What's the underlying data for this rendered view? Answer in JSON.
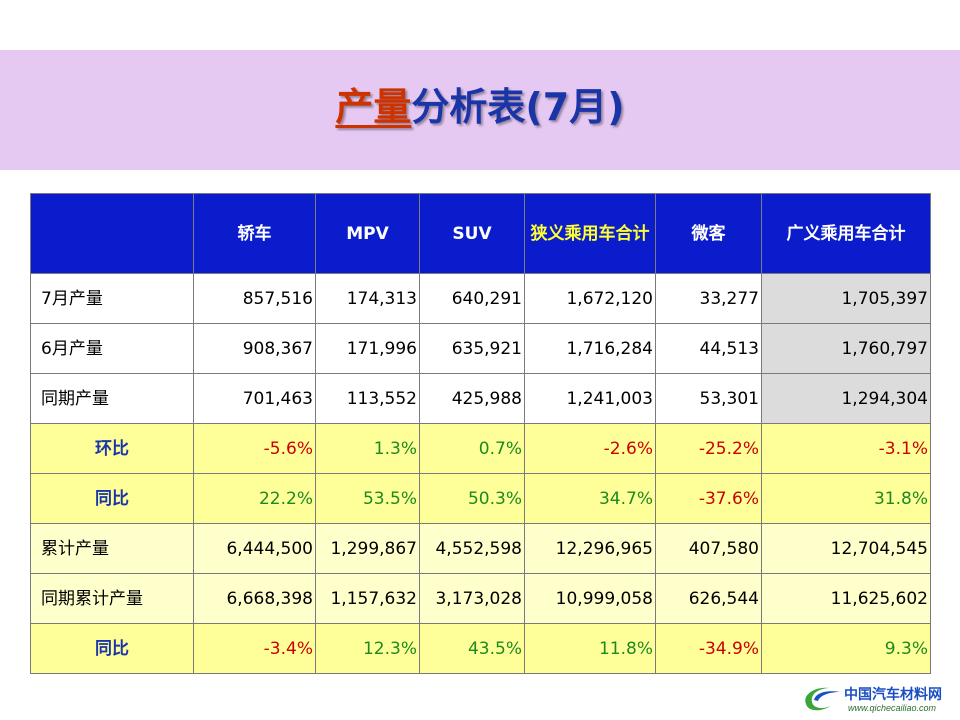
{
  "title": {
    "highlight": "产量",
    "rest": "分析表(7月)"
  },
  "table": {
    "headers": [
      "",
      "轿车",
      "MPV",
      "SUV",
      "狭义乘用车合计",
      "微客",
      "广义乘用车合计"
    ],
    "rows": [
      {
        "type": "data",
        "label": "7月产量",
        "cells": [
          {
            "v": "857,516"
          },
          {
            "v": "174,313"
          },
          {
            "v": "640,291"
          },
          {
            "v": "1,672,120"
          },
          {
            "v": "33,277"
          },
          {
            "v": "1,705,397"
          }
        ]
      },
      {
        "type": "data",
        "label": "6月产量",
        "cells": [
          {
            "v": "908,367"
          },
          {
            "v": "171,996"
          },
          {
            "v": "635,921"
          },
          {
            "v": "1,716,284"
          },
          {
            "v": "44,513"
          },
          {
            "v": "1,760,797"
          }
        ]
      },
      {
        "type": "data",
        "label": "同期产量",
        "cells": [
          {
            "v": "701,463"
          },
          {
            "v": "113,552"
          },
          {
            "v": "425,988"
          },
          {
            "v": "1,241,003"
          },
          {
            "v": "53,301"
          },
          {
            "v": "1,294,304"
          }
        ]
      },
      {
        "type": "ratio",
        "label": "环比",
        "cells": [
          {
            "v": "-5.6%",
            "s": "neg"
          },
          {
            "v": "1.3%",
            "s": "pos"
          },
          {
            "v": "0.7%",
            "s": "pos"
          },
          {
            "v": "-2.6%",
            "s": "neg"
          },
          {
            "v": "-25.2%",
            "s": "neg"
          },
          {
            "v": "-3.1%",
            "s": "neg"
          }
        ]
      },
      {
        "type": "ratio",
        "label": "同比",
        "cells": [
          {
            "v": "22.2%",
            "s": "pos"
          },
          {
            "v": "53.5%",
            "s": "pos"
          },
          {
            "v": "50.3%",
            "s": "pos"
          },
          {
            "v": "34.7%",
            "s": "pos"
          },
          {
            "v": "-37.6%",
            "s": "neg"
          },
          {
            "v": "31.8%",
            "s": "pos"
          }
        ]
      },
      {
        "type": "cum",
        "label": "累计产量",
        "cells": [
          {
            "v": "6,444,500"
          },
          {
            "v": "1,299,867"
          },
          {
            "v": "4,552,598"
          },
          {
            "v": "12,296,965"
          },
          {
            "v": "407,580"
          },
          {
            "v": "12,704,545"
          }
        ]
      },
      {
        "type": "cum",
        "label": "同期累计产量",
        "cells": [
          {
            "v": "6,668,398"
          },
          {
            "v": "1,157,632"
          },
          {
            "v": "3,173,028"
          },
          {
            "v": "10,999,058"
          },
          {
            "v": "626,544"
          },
          {
            "v": "11,625,602"
          }
        ]
      },
      {
        "type": "ratio",
        "label": "同比",
        "cells": [
          {
            "v": "-3.4%",
            "s": "neg"
          },
          {
            "v": "12.3%",
            "s": "pos"
          },
          {
            "v": "43.5%",
            "s": "pos"
          },
          {
            "v": "11.8%",
            "s": "pos"
          },
          {
            "v": "-34.9%",
            "s": "neg"
          },
          {
            "v": "9.3%",
            "s": "pos"
          }
        ]
      }
    ]
  },
  "logo": {
    "name": "中国汽车材料网",
    "url": "www.qichecailiao.com"
  }
}
